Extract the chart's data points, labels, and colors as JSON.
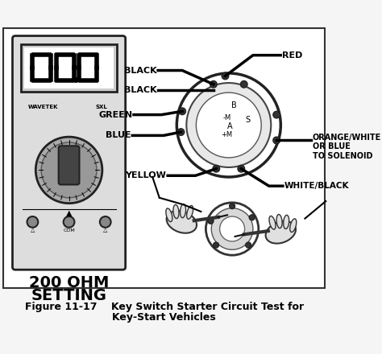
{
  "title_line1": "Figure 11-17    Key Switch Starter Circuit Test for",
  "title_line2": "Key-Start Vehicles",
  "ohm_text_line1": "200 OHM",
  "ohm_text_line2": "SETTING",
  "wire_labels": [
    "BLACK",
    "BLACK",
    "GREEN",
    "BLUE",
    "YELLOW"
  ],
  "right_labels": [
    "RED",
    "ORANGE/WHITE\nOR BLUE\nTO SOLENOID",
    "WHITE/BLACK"
  ],
  "switch_labels": [
    "B",
    "-M",
    "A",
    "+M",
    "S"
  ],
  "bg_color": "#f5f5f5",
  "diagram_bg": "#ffffff",
  "border_color": "#333333",
  "fig_width": 4.74,
  "fig_height": 4.4,
  "dpi": 100
}
